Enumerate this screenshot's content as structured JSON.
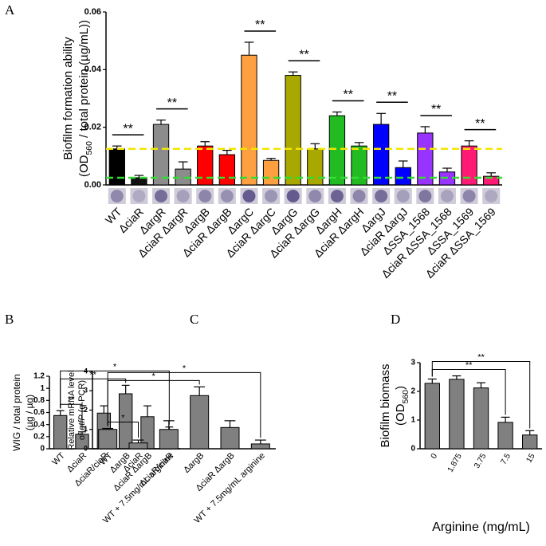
{
  "chart_data": [
    {
      "type": "bar",
      "panel": "A",
      "y_label": [
        [
          "Biofilm formation ability"
        ],
        [
          "(OD",
          {
            "text": "560",
            "style": "sub"
          },
          " / total protein (µg/mL))"
        ]
      ],
      "categories": [
        "WT",
        "ΔciaR",
        "ΔargR",
        "ΔciaR ΔargR",
        "ΔargB",
        "ΔciaR ΔargB",
        "ΔargC",
        "ΔciaR ΔargC",
        "ΔargG",
        "ΔciaR ΔargG",
        "ΔargH",
        "ΔciaR ΔargH",
        "ΔargJ",
        "ΔciaR ΔargJ",
        "ΔSSA_1568",
        "ΔciaR ΔSSA_1568",
        "ΔSSA_1569",
        "ΔciaR ΔSSA_1569"
      ],
      "values": [
        0.0125,
        0.0025,
        0.021,
        0.0055,
        0.0135,
        0.0105,
        0.045,
        0.0085,
        0.038,
        0.0125,
        0.024,
        0.0135,
        0.021,
        0.006,
        0.018,
        0.0045,
        0.0135,
        0.003
      ],
      "errors": [
        0.001,
        0.0008,
        0.0015,
        0.0025,
        0.0015,
        0.0015,
        0.0045,
        0.0007,
        0.0012,
        0.0018,
        0.0013,
        0.0012,
        0.0038,
        0.0023,
        0.0022,
        0.0013,
        0.0018,
        0.0012
      ],
      "colors": [
        "#000000",
        "#111111",
        "#8c8c8c",
        "#8c8c8c",
        "#ff0000",
        "#ff0000",
        "#ffa040",
        "#ffa040",
        "#a8a800",
        "#a8a800",
        "#22bb22",
        "#22bb22",
        "#0000ff",
        "#0000ff",
        "#9933ff",
        "#9933ff",
        "#ff1a75",
        "#ff1a75"
      ],
      "ylim": [
        0,
        0.06
      ],
      "yticks": [
        {
          "value": 0,
          "label": "0.00"
        },
        0.02,
        0.04,
        0.06
      ],
      "reference_lines": [
        {
          "value": 0.0125,
          "color": "#f2e600"
        },
        {
          "value": 0.0025,
          "color": "#33dd33"
        }
      ],
      "bracket_style": "line",
      "brackets": [
        {
          "text": "**",
          "from": 0,
          "to": 1
        },
        {
          "text": "**",
          "from": 2,
          "to": 3
        },
        {
          "text": "**",
          "from": 6,
          "to": 7
        },
        {
          "text": "**",
          "from": 8,
          "to": 9
        },
        {
          "text": "**",
          "from": 10,
          "to": 11
        },
        {
          "text": "**",
          "from": 12,
          "to": 13
        },
        {
          "text": "**",
          "from": 14,
          "to": 15
        },
        {
          "text": "**",
          "from": 16,
          "to": 17
        }
      ]
    },
    {
      "type": "bar",
      "panel": "B",
      "y_label": [
        [
          "WIG / total protein"
        ],
        [
          "(µg / µg)"
        ]
      ],
      "categories": [
        "WT",
        "ΔciaR",
        "ΔciaR/ciaR",
        "ΔargB",
        "ΔciaR ΔargB",
        "WT + 7.5mg/mL arginine"
      ],
      "values": [
        0.55,
        0.24,
        0.59,
        0.91,
        0.53,
        0.26
      ],
      "errors": [
        0.08,
        0.04,
        0.12,
        0.14,
        0.18,
        0.1
      ],
      "color": "#808080",
      "ylim": [
        0,
        1.2
      ],
      "yticks": [
        0,
        0.2,
        0.4,
        0.6,
        0.8,
        1,
        1.2
      ],
      "bracket_style": "bracket",
      "brackets": [
        {
          "text": "**",
          "from": 0,
          "to": 1
        },
        {
          "text": "**",
          "from": 0,
          "to": 3
        },
        {
          "text": "*",
          "from": 0,
          "to": 5
        }
      ]
    },
    {
      "type": "bar",
      "panel": "C",
      "y_label": [
        [
          "Relative mRNA level"
        ],
        [
          "of ",
          {
            "text": "gtfP",
            "style": "italic"
          },
          " (q-PCR)"
        ]
      ],
      "categories": [
        "WT",
        "ΔciaR",
        "ΔciaR/ciaR",
        "ΔargB",
        "ΔciaR ΔargB",
        "WT + 7.5mg/mL arginine"
      ],
      "values": [
        1,
        0.3,
        1.0,
        2.75,
        1.1,
        0.25
      ],
      "errors": [
        0.05,
        0.15,
        0.45,
        0.45,
        0.35,
        0.2
      ],
      "color": "#808080",
      "ylim": [
        0,
        4
      ],
      "yticks": [
        0,
        1,
        2,
        3,
        4
      ],
      "bracket_style": "bracket",
      "brackets": [
        {
          "text": "*",
          "from": 0,
          "to": 1
        },
        {
          "text": "*",
          "from": 0,
          "to": 3
        },
        {
          "text": "*",
          "from": 0,
          "to": 5
        }
      ]
    },
    {
      "type": "bar",
      "panel": "D",
      "y_label": [
        [
          "Biofilm biomass"
        ],
        [
          "(OD",
          {
            "text": "560",
            "style": "sub"
          },
          ")"
        ]
      ],
      "x_label": "Arginine (mg/mL)",
      "categories": [
        "0",
        "1.875",
        "3.75",
        "7.5",
        "15"
      ],
      "values": [
        2.28,
        2.42,
        2.12,
        0.92,
        0.48
      ],
      "errors": [
        0.15,
        0.12,
        0.18,
        0.18,
        0.15
      ],
      "color": "#808080",
      "ylim": [
        0,
        3
      ],
      "yticks": [
        0,
        1,
        2,
        3
      ],
      "bracket_style": "bracket",
      "brackets": [
        {
          "text": "**",
          "from": 0,
          "to": 3
        },
        {
          "text": "**",
          "from": 0,
          "to": 4
        }
      ]
    }
  ]
}
